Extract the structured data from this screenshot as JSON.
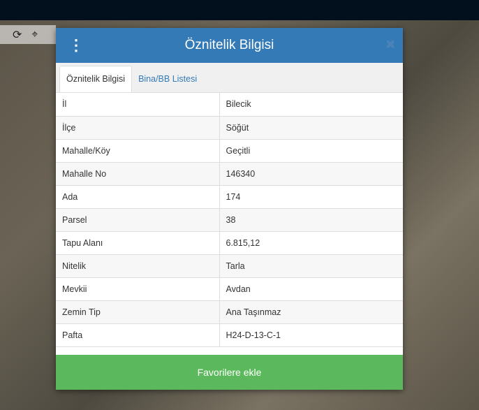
{
  "toolbar": {
    "icons": [
      "refresh-icon",
      "crosshair-icon"
    ]
  },
  "modal": {
    "title": "Öznitelik Bilgisi",
    "close": "×",
    "tabs": [
      {
        "label": "Öznitelik Bilgisi",
        "active": true
      },
      {
        "label": "Bina/BB Listesi",
        "active": false
      }
    ],
    "rows": [
      [
        "İl",
        "Bilecik"
      ],
      [
        "İlçe",
        "Söğüt"
      ],
      [
        "Mahalle/Köy",
        "Geçitli"
      ],
      [
        "Mahalle No",
        "146340"
      ],
      [
        "Ada",
        "174"
      ],
      [
        "Parsel",
        "38"
      ],
      [
        "Tapu Alanı",
        "6.815,12"
      ],
      [
        "Nitelik",
        "Tarla"
      ],
      [
        "Mevkii",
        "Avdan"
      ],
      [
        "Zemin Tip",
        "Ana Taşınmaz"
      ],
      [
        "Pafta",
        "H24-D-13-C-1"
      ]
    ],
    "favorite_label": "Favorilere ekle"
  },
  "colors": {
    "header": "#337ab7",
    "button": "#5cb85c"
  }
}
